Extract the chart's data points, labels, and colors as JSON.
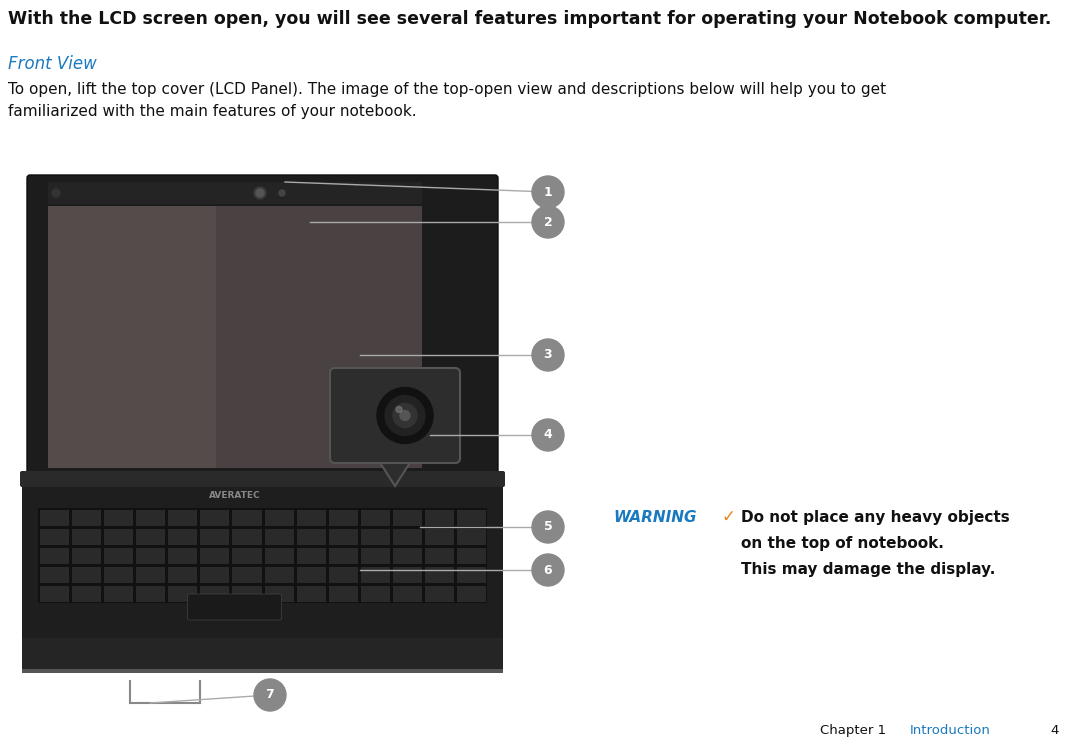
{
  "title_bold": "With the LCD screen open, you will see several features important for operating your Notebook computer.",
  "section_heading": "Front View",
  "section_heading_color": "#1a7abf",
  "body_text_line1": "To open, lift the top cover (LCD Panel). The image of the top-open view and descriptions below will help you to get",
  "body_text_line2": "familiarized with the main features of your notebook.",
  "warning_label": "WARNING",
  "warning_label_color": "#1a7abf",
  "warning_check_color": "#e8821a",
  "warning_line1": "Do not place any heavy objects",
  "warning_line2": "on the top of notebook.",
  "warning_line3": "This may damage the display.",
  "footer_chapter": "Chapter 1",
  "footer_intro": "Introduction",
  "footer_intro_color": "#1a7abf",
  "footer_page": "4",
  "background_color": "#ffffff",
  "callout_bg": "#888888",
  "callout_text_color": "#ffffff",
  "callout_line_color": "#aaaaaa",
  "callout_numbers": [
    "1",
    "2",
    "3",
    "4",
    "5",
    "6",
    "7"
  ],
  "laptop_bezel_color": "#1a1a1a",
  "laptop_screen_color": "#3a3535",
  "laptop_screen_left": "#5a5050",
  "laptop_base_color": "#1e1e1e",
  "laptop_kbd_color": "#111111",
  "laptop_brand": "AVERATEC"
}
